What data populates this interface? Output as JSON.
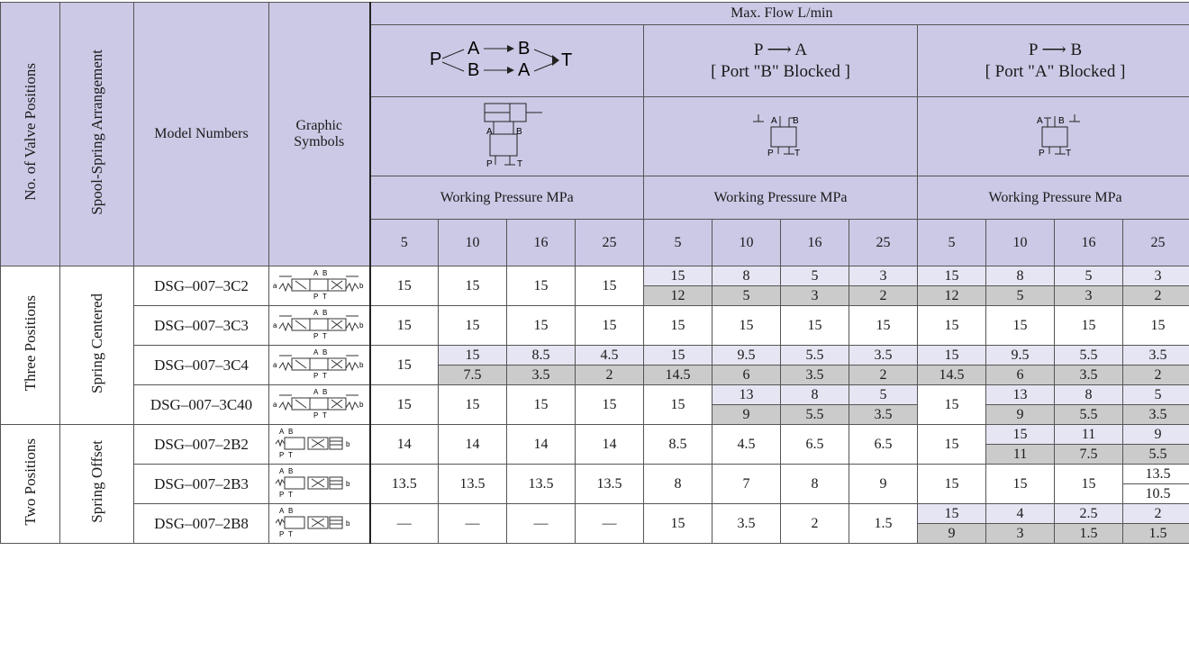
{
  "header": {
    "positions": "No. of Valve Positions",
    "spool": "Spool-Spring Arrangement",
    "model": "Model Numbers",
    "graphic": "Graphic Symbols",
    "max_flow": "Max. Flow   L/min",
    "group1": {
      "line1_left": "P",
      "a": "A",
      "b": "B",
      "t": "T"
    },
    "group2": {
      "line1": "P  ⟶  A",
      "line2": "[ Port \"B\" Blocked ]"
    },
    "group3": {
      "line1": "P  ⟶  B",
      "line2": "[ Port \"A\" Blocked ]"
    },
    "working_pressure": "Working Pressure    MPa",
    "pressures": [
      "5",
      "10",
      "16",
      "25"
    ]
  },
  "groups": {
    "three": {
      "positions": "Three Positions",
      "spool": "Spring Centered"
    },
    "two": {
      "positions": "Two Positions",
      "spool": "Spring Offset"
    }
  },
  "rows": {
    "r1": {
      "model": "DSG–007–3C2",
      "g1": [
        "15",
        "15",
        "15",
        "15"
      ],
      "g2t": [
        "15",
        "8",
        "5",
        "3"
      ],
      "g2b": [
        "12",
        "5",
        "3",
        "2"
      ],
      "g3t": [
        "15",
        "8",
        "5",
        "3"
      ],
      "g3b": [
        "12",
        "5",
        "3",
        "2"
      ]
    },
    "r2": {
      "model": "DSG–007–3C3",
      "g1": [
        "15",
        "15",
        "15",
        "15"
      ],
      "g2": [
        "15",
        "15",
        "15",
        "15"
      ],
      "g3": [
        "15",
        "15",
        "15",
        "15"
      ]
    },
    "r3": {
      "model": "DSG–007–3C4",
      "g1a": "15",
      "g1t": [
        "15",
        "8.5",
        "4.5"
      ],
      "g1b": [
        "7.5",
        "3.5",
        "2"
      ],
      "g2t": [
        "15",
        "9.5",
        "5.5",
        "3.5"
      ],
      "g2b": [
        "14.5",
        "6",
        "3.5",
        "2"
      ],
      "g3t": [
        "15",
        "9.5",
        "5.5",
        "3.5"
      ],
      "g3b": [
        "14.5",
        "6",
        "3.5",
        "2"
      ]
    },
    "r4": {
      "model": "DSG–007–3C40",
      "g1": [
        "15",
        "15",
        "15",
        "15"
      ],
      "g2a": "15",
      "g2t": [
        "13",
        "8",
        "5"
      ],
      "g2b": [
        "9",
        "5.5",
        "3.5"
      ],
      "g3a": "15",
      "g3t": [
        "13",
        "8",
        "5"
      ],
      "g3b": [
        "9",
        "5.5",
        "3.5"
      ]
    },
    "r5": {
      "model": "DSG–007–2B2",
      "g1": [
        "14",
        "14",
        "14",
        "14"
      ],
      "g2": [
        "8.5",
        "4.5",
        "6.5",
        "6.5"
      ],
      "g3a": "15",
      "g3t": [
        "15",
        "11",
        "9"
      ],
      "g3b": [
        "11",
        "7.5",
        "5.5"
      ]
    },
    "r6": {
      "model": "DSG–007–2B3",
      "g1": [
        "13.5",
        "13.5",
        "13.5",
        "13.5"
      ],
      "g2": [
        "8",
        "7",
        "8",
        "9"
      ],
      "g3a": [
        "15",
        "15",
        "15"
      ],
      "g3t": "13.5",
      "g3b": "10.5"
    },
    "r7": {
      "model": "DSG–007–2B8",
      "g1": [
        "—",
        "—",
        "—",
        "—"
      ],
      "g2": [
        "15",
        "3.5",
        "2",
        "1.5"
      ],
      "g3t": [
        "15",
        "4",
        "2.5",
        "2"
      ],
      "g3b": [
        "9",
        "3",
        "1.5",
        "1.5"
      ]
    }
  },
  "symbol_ports": {
    "a": "A",
    "b": "B",
    "p": "P",
    "t": "T",
    "sa": "a",
    "sb": "b"
  },
  "colors": {
    "header": "#ccc9e6",
    "light_row": "#e6e5f3",
    "gray_row": "#cbcbcb"
  }
}
